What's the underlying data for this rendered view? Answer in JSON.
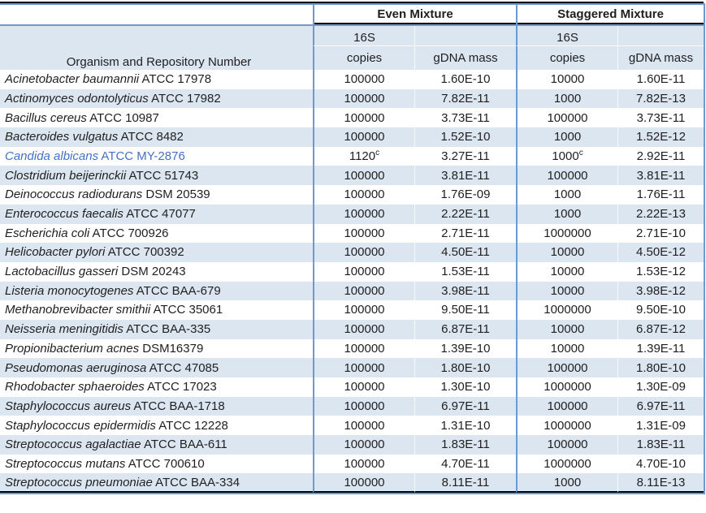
{
  "table": {
    "group_headers": {
      "even": "Even Mixture",
      "staggered": "Staggered Mixture"
    },
    "headers": {
      "organism": "Organism and Repository Number",
      "sixteen_s": "16S",
      "copies": "copies",
      "gdna_mass": "gDNA mass"
    },
    "colors": {
      "shaded_row": "#dce6f1",
      "blue_border": "#6d9bd1",
      "black_border": "#000000",
      "text": "#1f1f1f",
      "highlight_text": "#4472c4"
    },
    "rows": [
      {
        "organism": "Acinetobacter baumannii",
        "repository": "ATCC 17978",
        "even_copies": "100000",
        "even_copies_note": "",
        "even_gdna": "1.60E-10",
        "stag_copies": "10000",
        "stag_copies_note": "",
        "stag_gdna": "1.60E-11",
        "highlight": false
      },
      {
        "organism": "Actinomyces odontolyticus",
        "repository": "ATCC 17982",
        "even_copies": "100000",
        "even_copies_note": "",
        "even_gdna": "7.82E-11",
        "stag_copies": "1000",
        "stag_copies_note": "",
        "stag_gdna": "7.82E-13",
        "highlight": false
      },
      {
        "organism": "Bacillus cereus",
        "repository": "ATCC 10987",
        "even_copies": "100000",
        "even_copies_note": "",
        "even_gdna": "3.73E-11",
        "stag_copies": "100000",
        "stag_copies_note": "",
        "stag_gdna": "3.73E-11",
        "highlight": false
      },
      {
        "organism": "Bacteroides vulgatus",
        "repository": "ATCC 8482",
        "even_copies": "100000",
        "even_copies_note": "",
        "even_gdna": "1.52E-10",
        "stag_copies": "1000",
        "stag_copies_note": "",
        "stag_gdna": "1.52E-12",
        "highlight": false
      },
      {
        "organism": "Candida albicans",
        "repository": "ATCC MY-2876",
        "even_copies": "1120",
        "even_copies_note": "c",
        "even_gdna": "3.27E-11",
        "stag_copies": "1000",
        "stag_copies_note": "c",
        "stag_gdna": "2.92E-11",
        "highlight": true
      },
      {
        "organism": "Clostridium beijerinckii",
        "repository": "ATCC 51743",
        "even_copies": "100000",
        "even_copies_note": "",
        "even_gdna": "3.81E-11",
        "stag_copies": "100000",
        "stag_copies_note": "",
        "stag_gdna": "3.81E-11",
        "highlight": false
      },
      {
        "organism": "Deinococcus radiodurans",
        "repository": "DSM 20539",
        "even_copies": "100000",
        "even_copies_note": "",
        "even_gdna": "1.76E-09",
        "stag_copies": "1000",
        "stag_copies_note": "",
        "stag_gdna": "1.76E-11",
        "highlight": false
      },
      {
        "organism": "Enterococcus faecalis",
        "repository": "ATCC 47077",
        "even_copies": "100000",
        "even_copies_note": "",
        "even_gdna": "2.22E-11",
        "stag_copies": "1000",
        "stag_copies_note": "",
        "stag_gdna": "2.22E-13",
        "highlight": false
      },
      {
        "organism": "Escherichia coli",
        "repository": "ATCC 700926",
        "even_copies": "100000",
        "even_copies_note": "",
        "even_gdna": "2.71E-11",
        "stag_copies": "1000000",
        "stag_copies_note": "",
        "stag_gdna": "2.71E-10",
        "highlight": false
      },
      {
        "organism": "Helicobacter pylori",
        "repository": "ATCC 700392",
        "even_copies": "100000",
        "even_copies_note": "",
        "even_gdna": "4.50E-11",
        "stag_copies": "10000",
        "stag_copies_note": "",
        "stag_gdna": "4.50E-12",
        "highlight": false
      },
      {
        "organism": "Lactobacillus gasseri",
        "repository": "DSM 20243",
        "even_copies": "100000",
        "even_copies_note": "",
        "even_gdna": "1.53E-11",
        "stag_copies": "10000",
        "stag_copies_note": "",
        "stag_gdna": "1.53E-12",
        "highlight": false
      },
      {
        "organism": "Listeria monocytogenes",
        "repository": "ATCC BAA-679",
        "even_copies": "100000",
        "even_copies_note": "",
        "even_gdna": "3.98E-11",
        "stag_copies": "10000",
        "stag_copies_note": "",
        "stag_gdna": "3.98E-12",
        "highlight": false
      },
      {
        "organism": "Methanobrevibacter smithii",
        "repository": "ATCC 35061",
        "even_copies": "100000",
        "even_copies_note": "",
        "even_gdna": "9.50E-11",
        "stag_copies": "1000000",
        "stag_copies_note": "",
        "stag_gdna": "9.50E-10",
        "highlight": false
      },
      {
        "organism": "Neisseria meningitidis",
        "repository": "ATCC BAA-335",
        "even_copies": "100000",
        "even_copies_note": "",
        "even_gdna": "6.87E-11",
        "stag_copies": "10000",
        "stag_copies_note": "",
        "stag_gdna": "6.87E-12",
        "highlight": false
      },
      {
        "organism": "Propionibacterium acnes",
        "repository": "DSM16379",
        "even_copies": "100000",
        "even_copies_note": "",
        "even_gdna": "1.39E-10",
        "stag_copies": "10000",
        "stag_copies_note": "",
        "stag_gdna": "1.39E-11",
        "highlight": false
      },
      {
        "organism": "Pseudomonas aeruginosa",
        "repository": "ATCC 47085",
        "even_copies": "100000",
        "even_copies_note": "",
        "even_gdna": "1.80E-10",
        "stag_copies": "100000",
        "stag_copies_note": "",
        "stag_gdna": "1.80E-10",
        "highlight": false
      },
      {
        "organism": "Rhodobacter sphaeroides",
        "repository": "ATCC 17023",
        "even_copies": "100000",
        "even_copies_note": "",
        "even_gdna": "1.30E-10",
        "stag_copies": "1000000",
        "stag_copies_note": "",
        "stag_gdna": "1.30E-09",
        "highlight": false
      },
      {
        "organism": "Staphylococcus aureus",
        "repository": "ATCC BAA-1718",
        "even_copies": "100000",
        "even_copies_note": "",
        "even_gdna": "6.97E-11",
        "stag_copies": "100000",
        "stag_copies_note": "",
        "stag_gdna": "6.97E-11",
        "highlight": false
      },
      {
        "organism": "Staphylococcus epidermidis",
        "repository": "ATCC 12228",
        "even_copies": "100000",
        "even_copies_note": "",
        "even_gdna": "1.31E-10",
        "stag_copies": "1000000",
        "stag_copies_note": "",
        "stag_gdna": "1.31E-09",
        "highlight": false
      },
      {
        "organism": "Streptococcus agalactiae",
        "repository": "ATCC BAA-611",
        "even_copies": "100000",
        "even_copies_note": "",
        "even_gdna": "1.83E-11",
        "stag_copies": "100000",
        "stag_copies_note": "",
        "stag_gdna": "1.83E-11",
        "highlight": false
      },
      {
        "organism": "Streptococcus mutans",
        "repository": "ATCC 700610",
        "even_copies": "100000",
        "even_copies_note": "",
        "even_gdna": "4.70E-11",
        "stag_copies": "1000000",
        "stag_copies_note": "",
        "stag_gdna": "4.70E-10",
        "highlight": false
      },
      {
        "organism": "Streptococcus pneumoniae",
        "repository": "ATCC BAA-334",
        "even_copies": "100000",
        "even_copies_note": "",
        "even_gdna": "8.11E-11",
        "stag_copies": "1000",
        "stag_copies_note": "",
        "stag_gdna": "8.11E-13",
        "highlight": false
      }
    ]
  }
}
